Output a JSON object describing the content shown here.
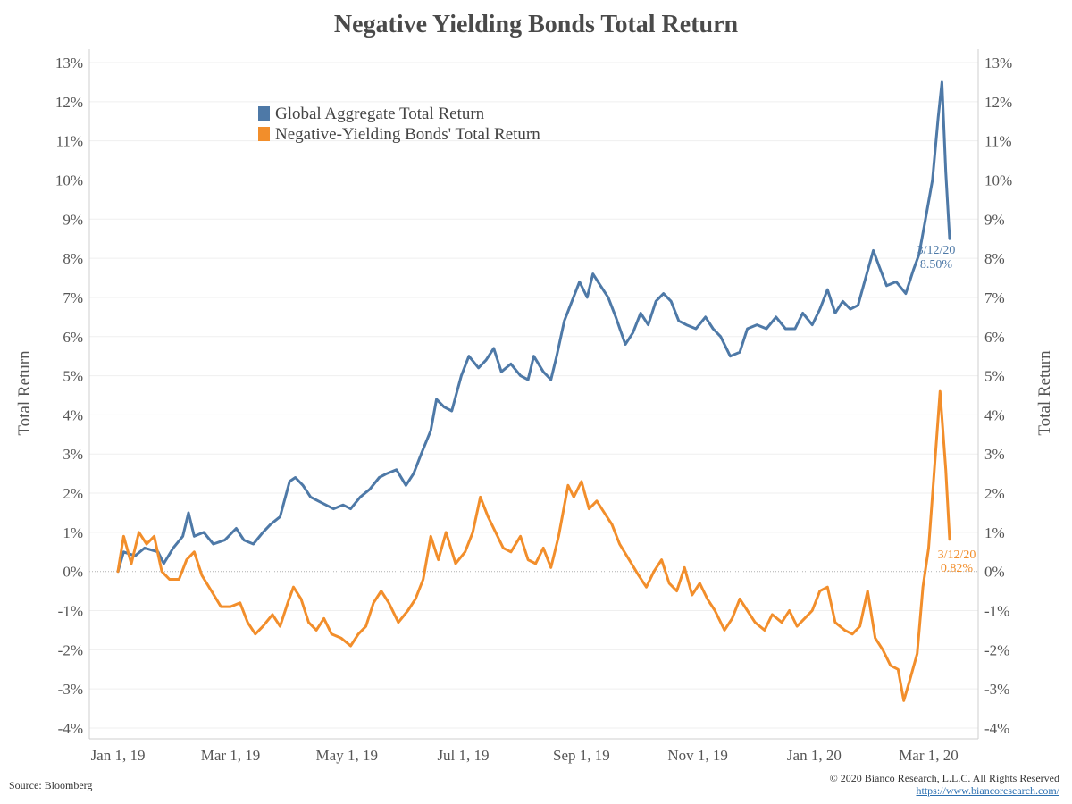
{
  "chart_data": {
    "type": "line",
    "title": "Negative Yielding Bonds Total Return",
    "ylabel": "Total Return",
    "ylim": [
      -4,
      13
    ],
    "ytick_labels": [
      "-4%",
      "-3%",
      "-2%",
      "-1%",
      "0%",
      "1%",
      "2%",
      "3%",
      "4%",
      "5%",
      "6%",
      "7%",
      "8%",
      "9%",
      "10%",
      "11%",
      "12%",
      "13%"
    ],
    "xtick_labels": [
      "Jan 1, 19",
      "Mar 1, 19",
      "May 1, 19",
      "Jul 1, 19",
      "Sep 1, 19",
      "Nov 1, 19",
      "Jan 1, 20",
      "Mar 1, 20"
    ],
    "xtick_dates": [
      "2019-01-01",
      "2019-03-01",
      "2019-05-01",
      "2019-07-01",
      "2019-09-01",
      "2019-11-01",
      "2020-01-01",
      "2020-03-01"
    ],
    "x_range": [
      "2018-12-17",
      "2020-03-27"
    ],
    "legend_position": "top-left",
    "series": [
      {
        "name": "Global Aggregate Total Return",
        "color": "#4e79a7",
        "end_label": {
          "date": "3/12/20",
          "value": "8.50%"
        },
        "points": [
          [
            "2019-01-01",
            0.0
          ],
          [
            "2019-01-04",
            0.5
          ],
          [
            "2019-01-10",
            0.4
          ],
          [
            "2019-01-15",
            0.6
          ],
          [
            "2019-01-22",
            0.5
          ],
          [
            "2019-01-25",
            0.2
          ],
          [
            "2019-01-30",
            0.6
          ],
          [
            "2019-02-04",
            0.9
          ],
          [
            "2019-02-07",
            1.5
          ],
          [
            "2019-02-10",
            0.9
          ],
          [
            "2019-02-15",
            1.0
          ],
          [
            "2019-02-20",
            0.7
          ],
          [
            "2019-02-26",
            0.8
          ],
          [
            "2019-03-04",
            1.1
          ],
          [
            "2019-03-08",
            0.8
          ],
          [
            "2019-03-13",
            0.7
          ],
          [
            "2019-03-18",
            1.0
          ],
          [
            "2019-03-22",
            1.2
          ],
          [
            "2019-03-27",
            1.4
          ],
          [
            "2019-04-01",
            2.3
          ],
          [
            "2019-04-04",
            2.4
          ],
          [
            "2019-04-08",
            2.2
          ],
          [
            "2019-04-12",
            1.9
          ],
          [
            "2019-04-16",
            1.8
          ],
          [
            "2019-04-20",
            1.7
          ],
          [
            "2019-04-24",
            1.6
          ],
          [
            "2019-04-29",
            1.7
          ],
          [
            "2019-05-03",
            1.6
          ],
          [
            "2019-05-08",
            1.9
          ],
          [
            "2019-05-13",
            2.1
          ],
          [
            "2019-05-18",
            2.4
          ],
          [
            "2019-05-22",
            2.5
          ],
          [
            "2019-05-27",
            2.6
          ],
          [
            "2019-06-01",
            2.2
          ],
          [
            "2019-06-05",
            2.5
          ],
          [
            "2019-06-09",
            3.0
          ],
          [
            "2019-06-14",
            3.6
          ],
          [
            "2019-06-17",
            4.4
          ],
          [
            "2019-06-21",
            4.2
          ],
          [
            "2019-06-25",
            4.1
          ],
          [
            "2019-06-30",
            5.0
          ],
          [
            "2019-07-04",
            5.5
          ],
          [
            "2019-07-09",
            5.2
          ],
          [
            "2019-07-13",
            5.4
          ],
          [
            "2019-07-17",
            5.7
          ],
          [
            "2019-07-21",
            5.1
          ],
          [
            "2019-07-26",
            5.3
          ],
          [
            "2019-07-31",
            5.0
          ],
          [
            "2019-08-04",
            4.9
          ],
          [
            "2019-08-07",
            5.5
          ],
          [
            "2019-08-12",
            5.1
          ],
          [
            "2019-08-16",
            4.9
          ],
          [
            "2019-08-19",
            5.5
          ],
          [
            "2019-08-23",
            6.4
          ],
          [
            "2019-08-27",
            6.9
          ],
          [
            "2019-08-31",
            7.4
          ],
          [
            "2019-09-04",
            7.0
          ],
          [
            "2019-09-07",
            7.6
          ],
          [
            "2019-09-11",
            7.3
          ],
          [
            "2019-09-15",
            7.0
          ],
          [
            "2019-09-19",
            6.5
          ],
          [
            "2019-09-24",
            5.8
          ],
          [
            "2019-09-28",
            6.1
          ],
          [
            "2019-10-02",
            6.6
          ],
          [
            "2019-10-06",
            6.3
          ],
          [
            "2019-10-10",
            6.9
          ],
          [
            "2019-10-14",
            7.1
          ],
          [
            "2019-10-18",
            6.9
          ],
          [
            "2019-10-22",
            6.4
          ],
          [
            "2019-10-26",
            6.3
          ],
          [
            "2019-10-31",
            6.2
          ],
          [
            "2019-11-05",
            6.5
          ],
          [
            "2019-11-09",
            6.2
          ],
          [
            "2019-11-13",
            6.0
          ],
          [
            "2019-11-18",
            5.5
          ],
          [
            "2019-11-23",
            5.6
          ],
          [
            "2019-11-27",
            6.2
          ],
          [
            "2019-12-02",
            6.3
          ],
          [
            "2019-12-07",
            6.2
          ],
          [
            "2019-12-12",
            6.5
          ],
          [
            "2019-12-17",
            6.2
          ],
          [
            "2019-12-22",
            6.2
          ],
          [
            "2019-12-26",
            6.6
          ],
          [
            "2019-12-31",
            6.3
          ],
          [
            "2020-01-04",
            6.7
          ],
          [
            "2020-01-08",
            7.2
          ],
          [
            "2020-01-12",
            6.6
          ],
          [
            "2020-01-16",
            6.9
          ],
          [
            "2020-01-20",
            6.7
          ],
          [
            "2020-01-24",
            6.8
          ],
          [
            "2020-01-28",
            7.5
          ],
          [
            "2020-02-01",
            8.2
          ],
          [
            "2020-02-04",
            7.8
          ],
          [
            "2020-02-08",
            7.3
          ],
          [
            "2020-02-13",
            7.4
          ],
          [
            "2020-02-18",
            7.1
          ],
          [
            "2020-02-22",
            7.7
          ],
          [
            "2020-02-25",
            8.1
          ],
          [
            "2020-02-28",
            8.9
          ],
          [
            "2020-03-03",
            10.0
          ],
          [
            "2020-03-06",
            11.6
          ],
          [
            "2020-03-08",
            12.5
          ],
          [
            "2020-03-10",
            10.2
          ],
          [
            "2020-03-12",
            8.5
          ]
        ]
      },
      {
        "name": "Negative-Yielding Bonds' Total Return",
        "color": "#f28e2b",
        "end_label": {
          "date": "3/12/20",
          "value": "0.82%"
        },
        "points": [
          [
            "2019-01-01",
            0.0
          ],
          [
            "2019-01-04",
            0.9
          ],
          [
            "2019-01-08",
            0.2
          ],
          [
            "2019-01-12",
            1.0
          ],
          [
            "2019-01-16",
            0.7
          ],
          [
            "2019-01-20",
            0.9
          ],
          [
            "2019-01-24",
            0.0
          ],
          [
            "2019-01-28",
            -0.2
          ],
          [
            "2019-02-02",
            -0.2
          ],
          [
            "2019-02-06",
            0.3
          ],
          [
            "2019-02-10",
            0.5
          ],
          [
            "2019-02-14",
            -0.1
          ],
          [
            "2019-02-19",
            -0.5
          ],
          [
            "2019-02-24",
            -0.9
          ],
          [
            "2019-03-01",
            -0.9
          ],
          [
            "2019-03-06",
            -0.8
          ],
          [
            "2019-03-10",
            -1.3
          ],
          [
            "2019-03-14",
            -1.6
          ],
          [
            "2019-03-18",
            -1.4
          ],
          [
            "2019-03-23",
            -1.1
          ],
          [
            "2019-03-27",
            -1.4
          ],
          [
            "2019-03-31",
            -0.8
          ],
          [
            "2019-04-03",
            -0.4
          ],
          [
            "2019-04-07",
            -0.7
          ],
          [
            "2019-04-11",
            -1.3
          ],
          [
            "2019-04-15",
            -1.5
          ],
          [
            "2019-04-19",
            -1.2
          ],
          [
            "2019-04-23",
            -1.6
          ],
          [
            "2019-04-28",
            -1.7
          ],
          [
            "2019-05-03",
            -1.9
          ],
          [
            "2019-05-07",
            -1.6
          ],
          [
            "2019-05-11",
            -1.4
          ],
          [
            "2019-05-15",
            -0.8
          ],
          [
            "2019-05-19",
            -0.5
          ],
          [
            "2019-05-23",
            -0.8
          ],
          [
            "2019-05-28",
            -1.3
          ],
          [
            "2019-06-02",
            -1.0
          ],
          [
            "2019-06-06",
            -0.7
          ],
          [
            "2019-06-10",
            -0.2
          ],
          [
            "2019-06-14",
            0.9
          ],
          [
            "2019-06-18",
            0.3
          ],
          [
            "2019-06-22",
            1.0
          ],
          [
            "2019-06-27",
            0.2
          ],
          [
            "2019-07-02",
            0.5
          ],
          [
            "2019-07-06",
            1.0
          ],
          [
            "2019-07-10",
            1.9
          ],
          [
            "2019-07-14",
            1.4
          ],
          [
            "2019-07-18",
            1.0
          ],
          [
            "2019-07-22",
            0.6
          ],
          [
            "2019-07-26",
            0.5
          ],
          [
            "2019-07-31",
            0.9
          ],
          [
            "2019-08-04",
            0.3
          ],
          [
            "2019-08-08",
            0.2
          ],
          [
            "2019-08-12",
            0.6
          ],
          [
            "2019-08-16",
            0.1
          ],
          [
            "2019-08-20",
            0.9
          ],
          [
            "2019-08-25",
            2.2
          ],
          [
            "2019-08-28",
            1.9
          ],
          [
            "2019-09-01",
            2.3
          ],
          [
            "2019-09-05",
            1.6
          ],
          [
            "2019-09-09",
            1.8
          ],
          [
            "2019-09-13",
            1.5
          ],
          [
            "2019-09-17",
            1.2
          ],
          [
            "2019-09-21",
            0.7
          ],
          [
            "2019-09-26",
            0.3
          ],
          [
            "2019-10-01",
            -0.1
          ],
          [
            "2019-10-05",
            -0.4
          ],
          [
            "2019-10-09",
            0.0
          ],
          [
            "2019-10-13",
            0.3
          ],
          [
            "2019-10-17",
            -0.3
          ],
          [
            "2019-10-21",
            -0.5
          ],
          [
            "2019-10-25",
            0.1
          ],
          [
            "2019-10-29",
            -0.6
          ],
          [
            "2019-11-02",
            -0.3
          ],
          [
            "2019-11-06",
            -0.7
          ],
          [
            "2019-11-10",
            -1.0
          ],
          [
            "2019-11-15",
            -1.5
          ],
          [
            "2019-11-19",
            -1.2
          ],
          [
            "2019-11-23",
            -0.7
          ],
          [
            "2019-11-27",
            -1.0
          ],
          [
            "2019-12-01",
            -1.3
          ],
          [
            "2019-12-06",
            -1.5
          ],
          [
            "2019-12-10",
            -1.1
          ],
          [
            "2019-12-15",
            -1.3
          ],
          [
            "2019-12-19",
            -1.0
          ],
          [
            "2019-12-23",
            -1.4
          ],
          [
            "2019-12-27",
            -1.2
          ],
          [
            "2019-12-31",
            -1.0
          ],
          [
            "2020-01-04",
            -0.5
          ],
          [
            "2020-01-08",
            -0.4
          ],
          [
            "2020-01-12",
            -1.3
          ],
          [
            "2020-01-17",
            -1.5
          ],
          [
            "2020-01-21",
            -1.6
          ],
          [
            "2020-01-25",
            -1.4
          ],
          [
            "2020-01-29",
            -0.5
          ],
          [
            "2020-02-02",
            -1.7
          ],
          [
            "2020-02-06",
            -2.0
          ],
          [
            "2020-02-10",
            -2.4
          ],
          [
            "2020-02-14",
            -2.5
          ],
          [
            "2020-02-17",
            -3.3
          ],
          [
            "2020-02-20",
            -2.8
          ],
          [
            "2020-02-24",
            -2.1
          ],
          [
            "2020-02-27",
            -0.4
          ],
          [
            "2020-03-01",
            0.6
          ],
          [
            "2020-03-04",
            2.6
          ],
          [
            "2020-03-07",
            4.6
          ],
          [
            "2020-03-10",
            2.6
          ],
          [
            "2020-03-12",
            0.82
          ]
        ]
      }
    ]
  },
  "footer": {
    "source": "Source: Bloomberg",
    "copyright": "© 2020 Bianco Research, L.L.C. All Rights Reserved",
    "url": "https://www.biancoresearch.com/"
  }
}
